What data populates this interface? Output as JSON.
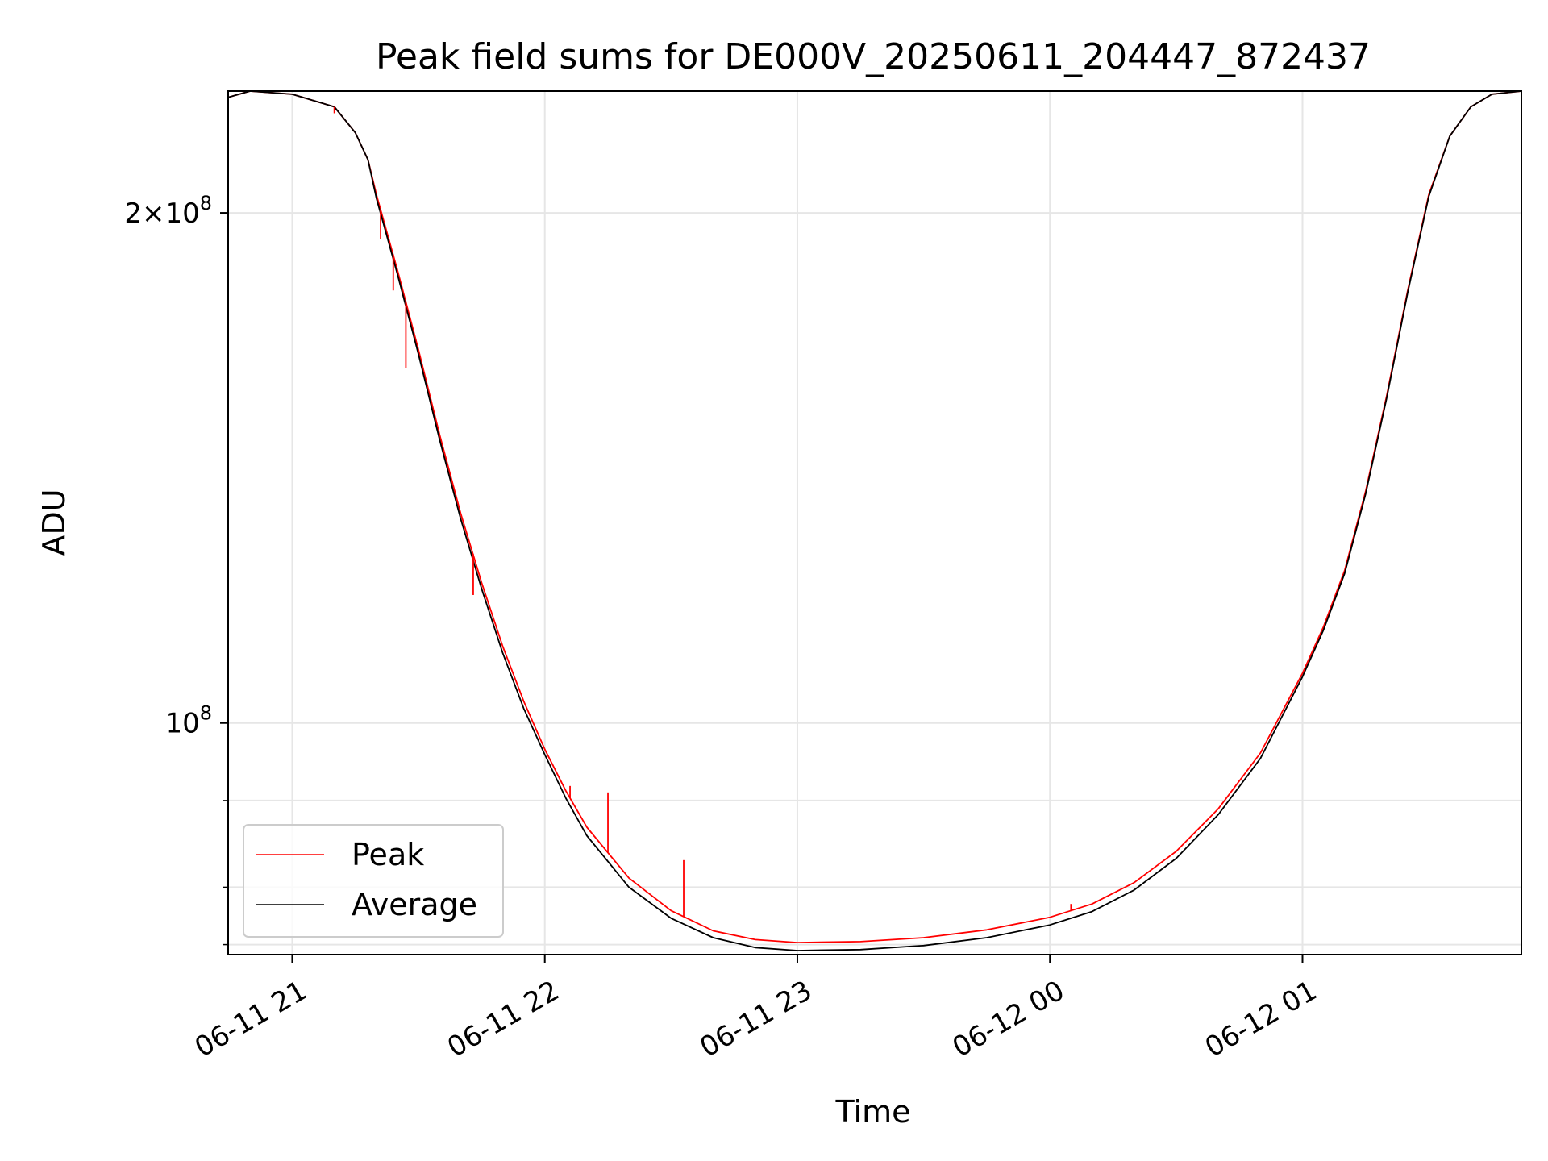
{
  "chart_data": {
    "type": "line",
    "title": "Peak field sums for DE000V_20250611_204447_872437",
    "xlabel": "Time",
    "ylabel": "ADU",
    "y_scale": "log",
    "xlim": [
      "2025-06-11 20:44:47",
      "2025-06-12 01:52:00"
    ],
    "ylim": [
      73000000,
      236000000
    ],
    "x_ticks": [
      {
        "value": "2025-06-11 21:00",
        "label": "06-11 21"
      },
      {
        "value": "2025-06-11 22:00",
        "label": "06-11 22"
      },
      {
        "value": "2025-06-11 23:00",
        "label": "06-11 23"
      },
      {
        "value": "2025-06-12 00:00",
        "label": "06-12 00"
      },
      {
        "value": "2025-06-12 01:00",
        "label": "06-12 01"
      }
    ],
    "y_major_ticks": [
      {
        "value": 100000000,
        "base": "10",
        "exp": "8"
      },
      {
        "value": 200000000,
        "coef": "2",
        "times": "×",
        "base": "10",
        "exp": "8"
      }
    ],
    "y_minor_ticks": [
      74000000,
      80000000,
      90000000
    ],
    "grid": true,
    "legend_position": "lower-left",
    "series": [
      {
        "name": "Peak",
        "color": "#ff0000",
        "x": [
          "2025-06-11 20:44:47",
          "2025-06-11 20:50",
          "2025-06-11 21:00",
          "2025-06-11 21:10",
          "2025-06-11 21:15",
          "2025-06-11 21:18",
          "2025-06-11 21:20",
          "2025-06-11 21:25",
          "2025-06-11 21:30",
          "2025-06-11 21:35",
          "2025-06-11 21:40",
          "2025-06-11 21:45",
          "2025-06-11 21:50",
          "2025-06-11 21:55",
          "2025-06-11 22:00",
          "2025-06-11 22:05",
          "2025-06-11 22:10",
          "2025-06-11 22:20",
          "2025-06-11 22:30",
          "2025-06-11 22:40",
          "2025-06-11 22:50",
          "2025-06-11 23:00",
          "2025-06-11 23:15",
          "2025-06-11 23:30",
          "2025-06-11 23:45",
          "2025-06-12 00:00",
          "2025-06-12 00:10",
          "2025-06-12 00:20",
          "2025-06-12 00:30",
          "2025-06-12 00:40",
          "2025-06-12 00:50",
          "2025-06-12 01:00",
          "2025-06-12 01:05",
          "2025-06-12 01:10",
          "2025-06-12 01:15",
          "2025-06-12 01:20",
          "2025-06-12 01:25",
          "2025-06-12 01:30",
          "2025-06-12 01:35",
          "2025-06-12 01:40",
          "2025-06-12 01:45",
          "2025-06-12 01:52"
        ],
        "values": [
          234000000,
          236000000,
          235000000,
          231000000,
          223000000,
          215000000,
          205000000,
          185000000,
          166000000,
          148000000,
          133000000,
          121000000,
          111000000,
          103000000,
          96500000,
          91200000,
          86800000,
          81000000,
          77500000,
          75400000,
          74500000,
          74200000,
          74300000,
          74700000,
          75500000,
          76800000,
          78200000,
          80500000,
          84000000,
          89000000,
          96000000,
          107000000,
          114000000,
          123000000,
          137000000,
          156000000,
          180000000,
          205000000,
          222000000,
          231000000,
          235000000,
          236000000
        ],
        "spikes": [
          {
            "x": "2025-06-11 21:10",
            "y": 229000000
          },
          {
            "x": "2025-06-11 21:21",
            "y": 193000000
          },
          {
            "x": "2025-06-11 21:24",
            "y": 180000000
          },
          {
            "x": "2025-06-11 21:27",
            "y": 162000000
          },
          {
            "x": "2025-06-11 21:43",
            "y": 119000000
          },
          {
            "x": "2025-06-11 22:06",
            "y": 91800000
          },
          {
            "x": "2025-06-11 22:15",
            "y": 91000000
          },
          {
            "x": "2025-06-11 22:33",
            "y": 83000000
          },
          {
            "x": "2025-06-12 00:05",
            "y": 78200000
          }
        ]
      },
      {
        "name": "Average",
        "color": "#000000",
        "x": [
          "2025-06-11 20:44:47",
          "2025-06-11 20:50",
          "2025-06-11 21:00",
          "2025-06-11 21:10",
          "2025-06-11 21:15",
          "2025-06-11 21:18",
          "2025-06-11 21:20",
          "2025-06-11 21:25",
          "2025-06-11 21:30",
          "2025-06-11 21:35",
          "2025-06-11 21:40",
          "2025-06-11 21:45",
          "2025-06-11 21:50",
          "2025-06-11 21:55",
          "2025-06-11 22:00",
          "2025-06-11 22:05",
          "2025-06-11 22:10",
          "2025-06-11 22:20",
          "2025-06-11 22:30",
          "2025-06-11 22:40",
          "2025-06-11 22:50",
          "2025-06-11 23:00",
          "2025-06-11 23:15",
          "2025-06-11 23:30",
          "2025-06-11 23:45",
          "2025-06-12 00:00",
          "2025-06-12 00:10",
          "2025-06-12 00:20",
          "2025-06-12 00:30",
          "2025-06-12 00:40",
          "2025-06-12 00:50",
          "2025-06-12 01:00",
          "2025-06-12 01:05",
          "2025-06-12 01:10",
          "2025-06-12 01:15",
          "2025-06-12 01:20",
          "2025-06-12 01:25",
          "2025-06-12 01:30",
          "2025-06-12 01:35",
          "2025-06-12 01:40",
          "2025-06-12 01:45",
          "2025-06-12 01:52"
        ],
        "values": [
          234000000,
          236000000,
          235000000,
          231000000,
          223000000,
          215000000,
          204000000,
          184000000,
          165000000,
          147000000,
          132000000,
          120000000,
          110000000,
          102000000,
          95800000,
          90300000,
          85800000,
          80000000,
          76700000,
          74700000,
          73700000,
          73400000,
          73500000,
          73900000,
          74700000,
          76000000,
          77400000,
          79700000,
          83200000,
          88300000,
          95300000,
          106500000,
          113500000,
          122500000,
          136500000,
          155500000,
          179500000,
          204500000,
          222000000,
          231000000,
          235000000,
          236000000
        ]
      }
    ]
  }
}
